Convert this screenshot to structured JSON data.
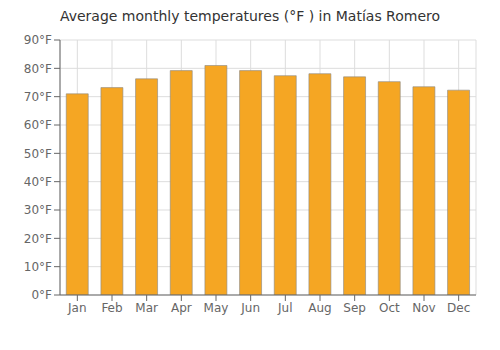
{
  "chart_data": {
    "type": "bar",
    "title": "Average monthly temperatures (°F ) in Matías Romero",
    "categories": [
      "Jan",
      "Feb",
      "Mar",
      "Apr",
      "May",
      "Jun",
      "Jul",
      "Aug",
      "Sep",
      "Oct",
      "Nov",
      "Dec"
    ],
    "values": [
      71.0,
      73.2,
      76.3,
      79.2,
      81.0,
      79.2,
      77.4,
      78.1,
      77.0,
      75.3,
      73.5,
      72.3
    ],
    "color": "#F5A623",
    "ylim": [
      0,
      90
    ],
    "yticks": [
      {
        "value": 0,
        "label": "0°F"
      },
      {
        "value": 10,
        "label": "10°F"
      },
      {
        "value": 20,
        "label": "20°F"
      },
      {
        "value": 30,
        "label": "30°F"
      },
      {
        "value": 40,
        "label": "40°F"
      },
      {
        "value": 50,
        "label": "50°F"
      },
      {
        "value": 60,
        "label": "60°F"
      },
      {
        "value": 70,
        "label": "70°F"
      },
      {
        "value": 80,
        "label": "80°F"
      },
      {
        "value": 90,
        "label": "90°F"
      }
    ],
    "grid": true
  }
}
